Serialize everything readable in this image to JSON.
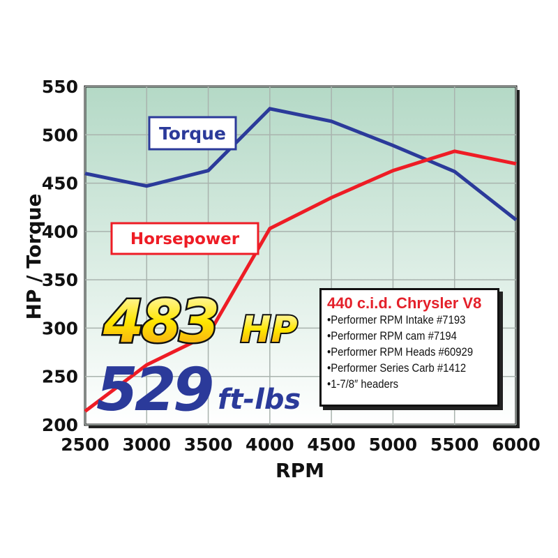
{
  "chart_data": {
    "type": "line",
    "xlabel": "RPM",
    "ylabel": "HP / Torque",
    "x": [
      2500,
      3000,
      3500,
      4000,
      4500,
      5000,
      5500,
      6000
    ],
    "xticks": [
      "2500",
      "3000",
      "3500",
      "4000",
      "4500",
      "5000",
      "5500",
      "6000"
    ],
    "yticks": [
      "200",
      "250",
      "300",
      "350",
      "400",
      "450",
      "500",
      "550"
    ],
    "xlim": [
      2500,
      6000
    ],
    "ylim": [
      200,
      550
    ],
    "grid": true,
    "series": [
      {
        "name": "Torque",
        "color": "#2b3a9a",
        "values": [
          460,
          447,
          463,
          527,
          514,
          489,
          462,
          412
        ]
      },
      {
        "name": "Horsepower",
        "color": "#ee1c25",
        "values": [
          214,
          262,
          293,
          403,
          435,
          463,
          483,
          470
        ]
      }
    ],
    "annotations": {
      "hp_value": "483",
      "hp_unit": "HP",
      "torque_value": "529",
      "torque_unit": "ft-lbs"
    }
  },
  "infobox": {
    "title": "440 c.i.d. Chrysler V8",
    "items": [
      "Performer RPM Intake #7193",
      "Performer RPM cam #7194",
      "Performer RPM Heads #60929",
      "Performer Series Carb #1412",
      "1-7/8″ headers"
    ]
  },
  "colors": {
    "plot_top": "#b4d9c6",
    "plot_bottom": "#ffffff",
    "torque": "#2b3a9a",
    "hp": "#ee1c25"
  }
}
